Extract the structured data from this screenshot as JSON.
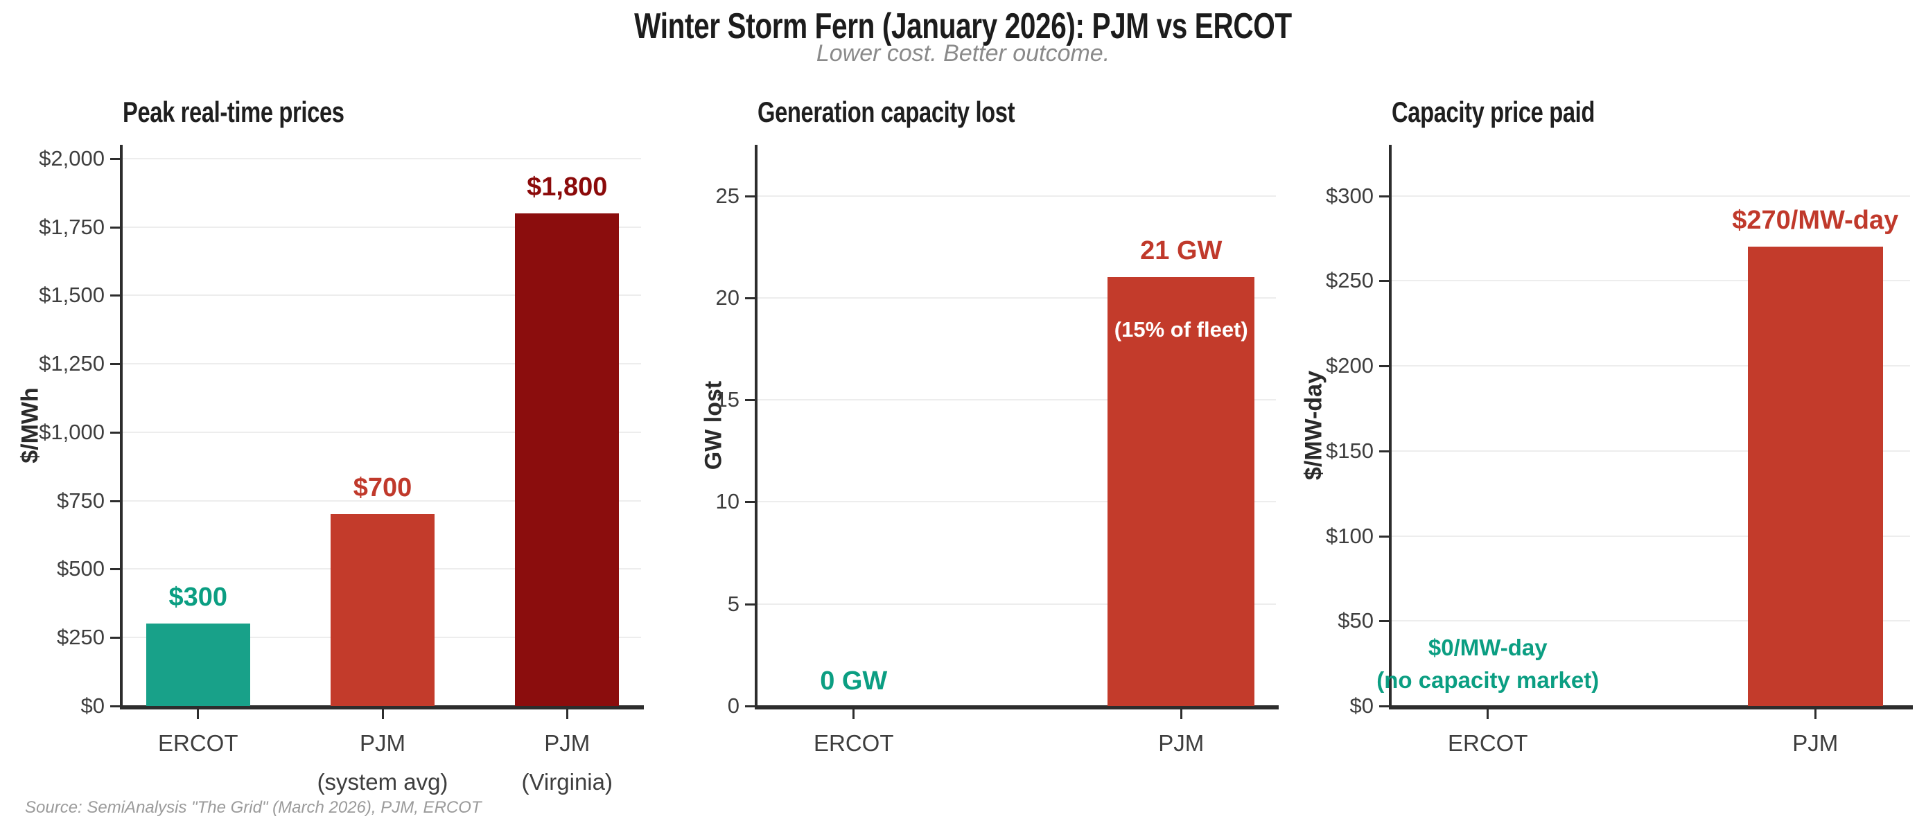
{
  "header": {
    "title": "Winter Storm Fern (January 2026): PJM vs ERCOT",
    "subtitle": "Lower cost. Better outcome."
  },
  "footer": {
    "source": "Source: SemiAnalysis \"The Grid\" (March 2026), PJM, ERCOT"
  },
  "colors": {
    "teal_bar": "#18A189",
    "teal_text": "#0B9E82",
    "red_bar": "#C33B2B",
    "red_text": "#C0392B",
    "dark_red_bar": "#8B0D0D",
    "dark_red_text": "#8B0A0A",
    "white_text": "#FFFFFF",
    "axis": "#2D2D2D",
    "grid": "#EDEDED",
    "tick_label": "#3E3E3E",
    "title": "#1C1C1C",
    "subtitle": "#8A8A8A",
    "source": "#9B9B9B",
    "background": "#FFFFFF"
  },
  "chart_data": [
    {
      "type": "bar",
      "title": "Peak real-time prices",
      "ylabel": "$/MWh",
      "xlabel": "",
      "ylim": [
        0,
        2050
      ],
      "yticks": [
        0,
        250,
        500,
        750,
        1000,
        1250,
        1500,
        1750,
        2000
      ],
      "ytick_labels": [
        "$0",
        "$250",
        "$500",
        "$750",
        "$1,000",
        "$1,250",
        "$1,500",
        "$1,750",
        "$2,000"
      ],
      "categories": [
        "ERCOT",
        "PJM\n(system avg)",
        "PJM\n(Virginia)"
      ],
      "values": [
        300,
        700,
        1800
      ],
      "value_labels": [
        "$300",
        "$700",
        "$1,800"
      ],
      "bar_colors": [
        "teal_bar",
        "red_bar",
        "dark_red_bar"
      ],
      "value_label_colors": [
        "teal_text",
        "red_text",
        "dark_red_text"
      ],
      "bar_annotations": [
        null,
        null,
        null
      ],
      "grid": true,
      "legend": false,
      "bar_centers": [
        0.145,
        0.5,
        0.855
      ],
      "bar_width_frac": 0.2
    },
    {
      "type": "bar",
      "title": "Generation capacity lost",
      "ylabel": "GW lost",
      "xlabel": "",
      "ylim": [
        0,
        27.5
      ],
      "yticks": [
        0,
        5,
        10,
        15,
        20,
        25
      ],
      "ytick_labels": [
        "0",
        "5",
        "10",
        "15",
        "20",
        "25"
      ],
      "categories": [
        "ERCOT",
        "PJM"
      ],
      "values": [
        0,
        21
      ],
      "value_labels": [
        "0 GW",
        "21 GW"
      ],
      "bar_colors": [
        "teal_bar",
        "red_bar"
      ],
      "value_label_colors": [
        "teal_text",
        "red_text"
      ],
      "bar_annotations": [
        null,
        "(15% of fleet)"
      ],
      "grid": true,
      "legend": false,
      "bar_centers": [
        0.185,
        0.815
      ],
      "bar_width_frac": 0.283
    },
    {
      "type": "bar",
      "title": "Capacity price paid",
      "ylabel": "$/MW-day",
      "xlabel": "",
      "ylim": [
        0,
        330
      ],
      "yticks": [
        0,
        50,
        100,
        150,
        200,
        250,
        300
      ],
      "ytick_labels": [
        "$0",
        "$50",
        "$100",
        "$150",
        "$200",
        "$250",
        "$300"
      ],
      "categories": [
        "ERCOT",
        "PJM"
      ],
      "values": [
        0,
        270
      ],
      "value_labels": [
        "$0/MW-day\n(no capacity market)",
        "$270/MW-day"
      ],
      "bar_colors": [
        "teal_bar",
        "red_bar"
      ],
      "value_label_colors": [
        "teal_text",
        "red_text"
      ],
      "bar_annotations": [
        null,
        null
      ],
      "grid": true,
      "legend": false,
      "bar_centers": [
        0.185,
        0.815
      ],
      "bar_width_frac": 0.26
    }
  ]
}
